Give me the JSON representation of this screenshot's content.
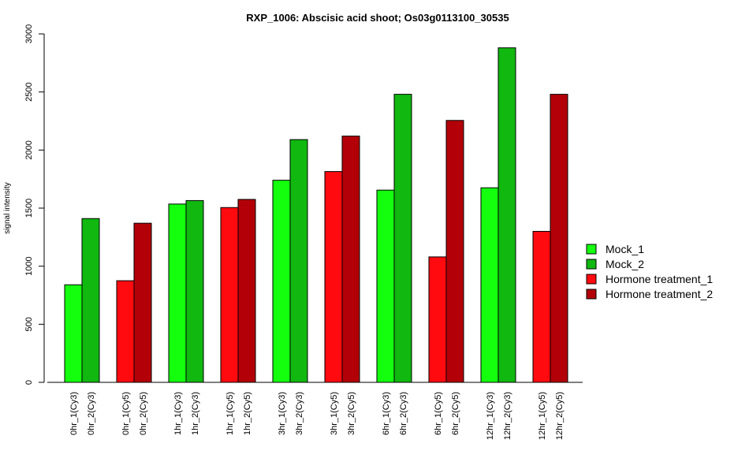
{
  "chart_data": {
    "type": "bar",
    "title": "RXP_1006: Abscisic acid shoot; Os03g0113100_30535",
    "xlabel": "",
    "ylabel": "signal intensity",
    "ylim": [
      0,
      3000
    ],
    "yticks": [
      0,
      500,
      1000,
      1500,
      2000,
      2500,
      3000
    ],
    "grid": false,
    "legend_position": "right",
    "categories": [
      "0hr_1(Cy3)",
      "0hr_2(Cy3)",
      "0hr_1(Cy5)",
      "0hr_2(Cy5)",
      "1hr_1(Cy3)",
      "1hr_2(Cy3)",
      "1hr_1(Cy5)",
      "1hr_2(Cy5)",
      "3hr_1(Cy3)",
      "3hr_2(Cy3)",
      "3hr_1(Cy5)",
      "3hr_2(Cy5)",
      "6hr_1(Cy3)",
      "6hr_2(Cy3)",
      "6hr_1(Cy5)",
      "6hr_2(Cy5)",
      "12hr_1(Cy3)",
      "12hr_2(Cy3)",
      "12hr_1(Cy5)",
      "12hr_2(Cy5)"
    ],
    "values": [
      840,
      1410,
      875,
      1370,
      1535,
      1565,
      1505,
      1575,
      1740,
      2090,
      1815,
      2120,
      1655,
      2480,
      1080,
      2255,
      1675,
      2880,
      1300,
      2480
    ],
    "bar_series": [
      "Mock_1",
      "Mock_2",
      "Hormone treatment_1",
      "Hormone treatment_2",
      "Mock_1",
      "Mock_2",
      "Hormone treatment_1",
      "Hormone treatment_2",
      "Mock_1",
      "Mock_2",
      "Hormone treatment_1",
      "Hormone treatment_2",
      "Mock_1",
      "Mock_2",
      "Hormone treatment_1",
      "Hormone treatment_2",
      "Mock_1",
      "Mock_2",
      "Hormone treatment_1",
      "Hormone treatment_2"
    ],
    "legend": [
      {
        "name": "Mock_1",
        "color": "#14ff0e"
      },
      {
        "name": "Mock_2",
        "color": "#10b810"
      },
      {
        "name": "Hormone treatment_1",
        "color": "#ff0a0f"
      },
      {
        "name": "Hormone treatment_2",
        "color": "#b30008"
      }
    ]
  }
}
